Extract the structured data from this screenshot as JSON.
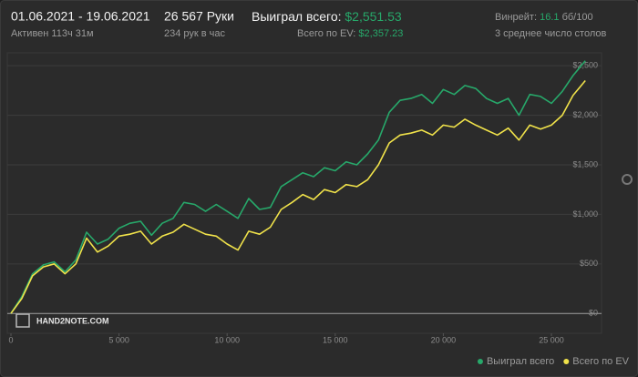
{
  "header": {
    "date_range": "01.06.2021 - 19.06.2021",
    "active": "Активен 113ч 31м",
    "hands": "26 567 Руки",
    "hands_per_hour": "234 рук в час",
    "won_label": "Выиграл всего:",
    "won_value": "$2,551.53",
    "ev_label": "Всего по EV:",
    "ev_value": "$2,357.23",
    "winrate_label": "Винрейт:",
    "winrate_value": "16.1",
    "winrate_unit": "бб/100",
    "tables": "3 среднее число столов",
    "watermark": "HAND2NOTE.COM"
  },
  "chart_data": {
    "type": "line",
    "x": [
      0,
      500,
      1000,
      1500,
      2000,
      2500,
      3000,
      3500,
      4000,
      4500,
      5000,
      5500,
      6000,
      6500,
      7000,
      7500,
      8000,
      8500,
      9000,
      9500,
      10000,
      10500,
      11000,
      11500,
      12000,
      12500,
      13000,
      13500,
      14000,
      14500,
      15000,
      15500,
      16000,
      16500,
      17000,
      17500,
      18000,
      18500,
      19000,
      19500,
      20000,
      20500,
      21000,
      21500,
      22000,
      22500,
      23000,
      23500,
      24000,
      24500,
      25000,
      25500,
      26000,
      26567
    ],
    "series": [
      {
        "name": "Выиграл всего",
        "color": "#27a86a",
        "values": [
          0,
          170,
          400,
          490,
          520,
          420,
          540,
          820,
          700,
          750,
          860,
          910,
          930,
          790,
          910,
          960,
          1120,
          1100,
          1030,
          1100,
          1030,
          960,
          1160,
          1050,
          1070,
          1280,
          1350,
          1420,
          1380,
          1470,
          1440,
          1530,
          1500,
          1610,
          1750,
          2030,
          2150,
          2170,
          2210,
          2120,
          2260,
          2210,
          2300,
          2270,
          2170,
          2120,
          2170,
          2000,
          2210,
          2190,
          2120,
          2240,
          2400,
          2550
        ]
      },
      {
        "name": "Всего по EV",
        "color": "#f0e24a",
        "values": [
          0,
          150,
          380,
          470,
          500,
          400,
          500,
          760,
          620,
          680,
          780,
          800,
          830,
          700,
          780,
          820,
          900,
          850,
          800,
          780,
          700,
          640,
          830,
          800,
          870,
          1050,
          1120,
          1200,
          1150,
          1250,
          1220,
          1300,
          1280,
          1350,
          1500,
          1720,
          1800,
          1820,
          1850,
          1800,
          1900,
          1880,
          1960,
          1900,
          1850,
          1800,
          1870,
          1750,
          1900,
          1860,
          1900,
          2000,
          2200,
          2350
        ]
      }
    ],
    "xlim": [
      0,
      27300
    ],
    "ylim": [
      -200,
      2630
    ],
    "xticks": [
      0,
      {
        "value": 5000,
        "label": "5 000"
      },
      {
        "value": 10000,
        "label": "10 000"
      },
      {
        "value": 15000,
        "label": "15 000"
      },
      {
        "value": 20000,
        "label": "20 000"
      },
      {
        "value": 25000,
        "label": "25 000"
      }
    ],
    "yticks": [
      {
        "value": 0,
        "label": "$0"
      },
      {
        "value": 500,
        "label": "$500"
      },
      {
        "value": 1000,
        "label": "$1,000"
      },
      {
        "value": 1500,
        "label": "$1,500"
      },
      {
        "value": 2000,
        "label": "$2,000"
      },
      {
        "value": 2500,
        "label": "$2,500"
      }
    ],
    "grid": true,
    "legend": "bottom-right"
  }
}
